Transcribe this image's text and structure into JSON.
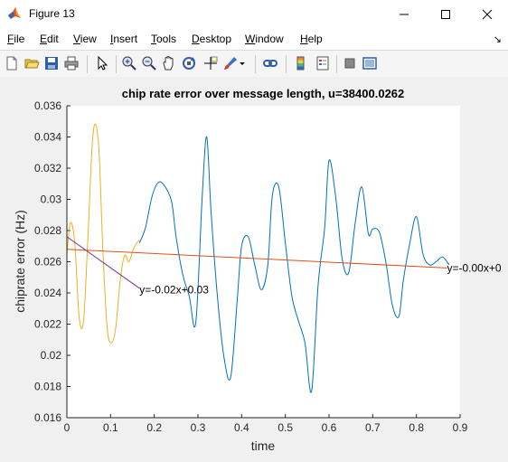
{
  "window": {
    "title": "Figure 13"
  },
  "menu": [
    {
      "label": "File",
      "u": "F",
      "rest": "ile"
    },
    {
      "label": "Edit",
      "u": "E",
      "rest": "dit"
    },
    {
      "label": "View",
      "u": "V",
      "rest": "iew"
    },
    {
      "label": "Insert",
      "u": "I",
      "rest": "nsert"
    },
    {
      "label": "Tools",
      "u": "T",
      "rest": "ools"
    },
    {
      "label": "Desktop",
      "u": "D",
      "rest": "esktop"
    },
    {
      "label": "Window",
      "u": "W",
      "rest": "indow"
    },
    {
      "label": "Help",
      "u": "H",
      "rest": "elp"
    }
  ],
  "toolbar": [
    "new-figure-icon",
    "open-file-icon",
    "save-icon",
    "print-icon",
    "pointer-icon",
    "zoom-in-icon",
    "zoom-out-icon",
    "pan-icon",
    "rotate-3d-icon",
    "data-cursor-icon",
    "brush-icon",
    "link-plot-icon",
    "colorbar-icon",
    "legend-icon",
    "hide-plot-tools-icon",
    "show-plot-tools-icon"
  ],
  "chart_data": {
    "type": "line",
    "title": "chip rate error over message length, u=38400.0262",
    "xlabel": "time",
    "ylabel": "chiprate error (Hz)",
    "xlim": [
      0,
      0.9
    ],
    "ylim": [
      0.016,
      0.036
    ],
    "xticks": [
      "0",
      "0.1",
      "0.2",
      "0.3",
      "0.4",
      "0.5",
      "0.6",
      "0.7",
      "0.8",
      "0.9"
    ],
    "yticks": [
      "0.016",
      "0.018",
      "0.02",
      "0.022",
      "0.024",
      "0.026",
      "0.028",
      "0.03",
      "0.032",
      "0.034",
      "0.036"
    ],
    "grid": false,
    "series": [
      {
        "color": "#0072BD",
        "x": [
          0.166,
          0.18,
          0.195,
          0.21,
          0.225,
          0.24,
          0.25,
          0.265,
          0.28,
          0.295,
          0.31,
          0.32,
          0.33,
          0.345,
          0.36,
          0.375,
          0.39,
          0.4,
          0.415,
          0.43,
          0.445,
          0.46,
          0.47,
          0.485,
          0.5,
          0.515,
          0.53,
          0.545,
          0.56,
          0.575,
          0.59,
          0.6,
          0.615,
          0.63,
          0.645,
          0.66,
          0.675,
          0.69,
          0.7,
          0.715,
          0.73,
          0.745,
          0.76,
          0.77,
          0.785,
          0.8,
          0.815,
          0.83,
          0.845,
          0.86,
          0.875
        ],
        "y": [
          0.0272,
          0.0282,
          0.0302,
          0.0311,
          0.0308,
          0.0298,
          0.0276,
          0.0252,
          0.0238,
          0.0221,
          0.0303,
          0.034,
          0.0292,
          0.0236,
          0.0198,
          0.0186,
          0.0236,
          0.027,
          0.0276,
          0.0258,
          0.0242,
          0.0258,
          0.0302,
          0.0308,
          0.0272,
          0.0238,
          0.0222,
          0.0208,
          0.0177,
          0.0245,
          0.0282,
          0.0325,
          0.0302,
          0.0262,
          0.0253,
          0.0285,
          0.0308,
          0.0278,
          0.0281,
          0.0279,
          0.026,
          0.0232,
          0.0225,
          0.0248,
          0.0272,
          0.0289,
          0.0265,
          0.0258,
          0.026,
          0.0263,
          0.0258
        ]
      },
      {
        "color": "#EDB120",
        "x": [
          0,
          0.008,
          0.018,
          0.028,
          0.038,
          0.048,
          0.058,
          0.066,
          0.074,
          0.082,
          0.092,
          0.102,
          0.112,
          0.122,
          0.132,
          0.142,
          0.152,
          0.16,
          0.166
        ],
        "y": [
          0.0264,
          0.0285,
          0.0272,
          0.0225,
          0.0222,
          0.0275,
          0.0335,
          0.0348,
          0.0328,
          0.027,
          0.0218,
          0.0208,
          0.0218,
          0.0248,
          0.0264,
          0.026,
          0.0268,
          0.0272,
          0.0274
        ]
      },
      {
        "color": "#D95319",
        "x": [
          0,
          0.87
        ],
        "y": [
          0.0268,
          0.0256
        ]
      },
      {
        "color": "#7E2F8E",
        "x": [
          0,
          0.166
        ],
        "y": [
          0.0276,
          0.0243
        ]
      }
    ],
    "annotations": [
      {
        "text": "y=-0.02x+0.03",
        "x": 0.166,
        "y": 0.0242
      },
      {
        "text": "y=-0.00x+0",
        "x": 0.87,
        "y": 0.0256
      }
    ]
  }
}
